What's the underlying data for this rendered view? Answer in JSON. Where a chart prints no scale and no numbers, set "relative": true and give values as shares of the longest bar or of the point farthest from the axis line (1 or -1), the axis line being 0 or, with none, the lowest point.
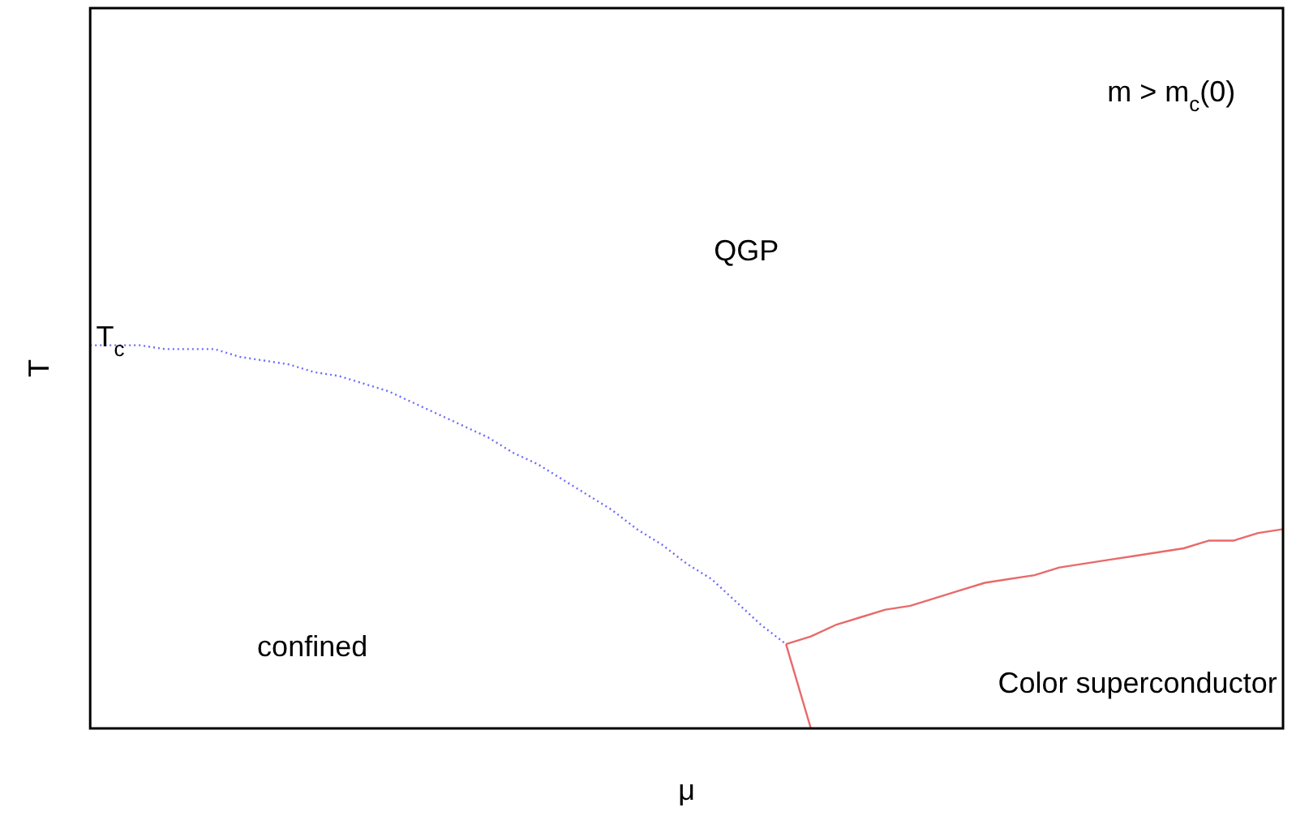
{
  "chart_data": {
    "type": "line",
    "relative": true,
    "xlabel": "μ",
    "ylabel": "T",
    "grid": false,
    "legend": false,
    "marker": "none",
    "categories": [
      null,
      null,
      null,
      null,
      null,
      null,
      null,
      null,
      null,
      null,
      null,
      null,
      null,
      null,
      null,
      null,
      null,
      null,
      null,
      null,
      null,
      null,
      null,
      null,
      null,
      null,
      null,
      null,
      null,
      null,
      null,
      null,
      null,
      null,
      null,
      null,
      null,
      null,
      null,
      null,
      null,
      null,
      null,
      null,
      null,
      null,
      null,
      null,
      null
    ],
    "series": [
      {
        "color": "#6b6bff",
        "line_style": "dotted",
        "values": [
          1,
          1,
          1,
          0.99,
          0.99,
          0.99,
          0.97,
          0.96,
          0.95,
          0.93,
          0.92,
          0.9,
          0.88,
          0.85,
          0.82,
          0.79,
          0.76,
          0.72,
          0.69,
          0.65,
          0.61,
          0.57,
          0.52,
          0.48,
          0.43,
          0.39,
          0.33,
          0.27,
          0.22,
          null,
          null,
          null,
          null,
          null,
          null,
          null,
          null,
          null,
          null,
          null,
          null,
          null,
          null,
          null,
          null,
          null,
          null,
          null,
          null
        ]
      },
      {
        "color": "#e86a6a",
        "line_style": "solid",
        "values": [
          null,
          null,
          null,
          null,
          null,
          null,
          null,
          null,
          null,
          null,
          null,
          null,
          null,
          null,
          null,
          null,
          null,
          null,
          null,
          null,
          null,
          null,
          null,
          null,
          null,
          null,
          null,
          null,
          0.22,
          0,
          null,
          null,
          null,
          null,
          null,
          null,
          null,
          null,
          null,
          null,
          null,
          null,
          null,
          null,
          null,
          null,
          null,
          null,
          null
        ]
      },
      {
        "color": "#e86a6a",
        "line_style": "solid",
        "values": [
          null,
          null,
          null,
          null,
          null,
          null,
          null,
          null,
          null,
          null,
          null,
          null,
          null,
          null,
          null,
          null,
          null,
          null,
          null,
          null,
          null,
          null,
          null,
          null,
          null,
          null,
          null,
          null,
          0.22,
          0.24,
          0.27,
          0.29,
          0.31,
          0.32,
          0.34,
          0.36,
          0.38,
          0.39,
          0.4,
          0.42,
          0.43,
          0.44,
          0.45,
          0.46,
          0.47,
          0.49,
          0.49,
          0.51,
          0.52
        ]
      }
    ],
    "annotations": [
      "T$_{c}$",
      "m > m$_{c}$(0)",
      "QGP",
      "confined",
      "Color superconductor"
    ]
  }
}
